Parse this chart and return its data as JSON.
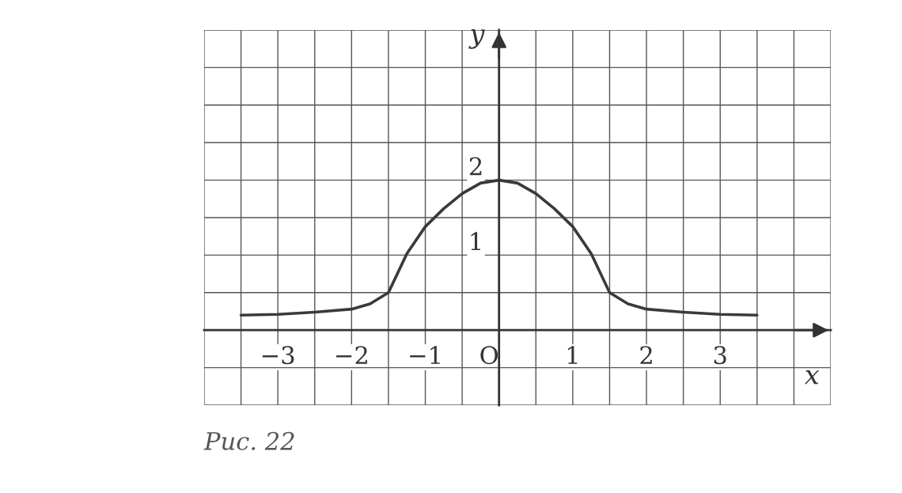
{
  "chart_data": {
    "type": "line",
    "xlabel": "x",
    "ylabel": "y",
    "annotations": [
      "Рис. 22"
    ],
    "x": [
      -3.5,
      -3,
      -2.5,
      -2,
      -1.75,
      -1.5,
      -1.25,
      -1,
      -0.75,
      -0.5,
      -0.25,
      0,
      0.25,
      0.5,
      0.75,
      1,
      1.25,
      1.5,
      1.75,
      2,
      2.5,
      3,
      3.5
    ],
    "series": [
      {
        "color": "#3a3a3a",
        "values": [
          0.2,
          0.21,
          0.24,
          0.28,
          0.35,
          0.5,
          1.02,
          1.38,
          1.62,
          1.82,
          1.96,
          2,
          1.96,
          1.82,
          1.62,
          1.38,
          1.02,
          0.5,
          0.35,
          0.28,
          0.24,
          0.21,
          0.2
        ]
      }
    ],
    "xlim": [
      -4,
      4.5
    ],
    "ylim": [
      -1,
      4
    ],
    "xticks": [
      {
        "value": -4,
        "label": null
      },
      {
        "value": -3.5,
        "label": null
      },
      {
        "value": -3,
        "label": "−3"
      },
      {
        "value": -2.5,
        "label": null
      },
      {
        "value": -2,
        "label": "−2"
      },
      {
        "value": -1.5,
        "label": null
      },
      {
        "value": -1,
        "label": "−1"
      },
      {
        "value": -0.5,
        "label": null
      },
      {
        "value": 0,
        "label": "O"
      },
      {
        "value": 0.5,
        "label": null
      },
      1,
      {
        "value": 1.5,
        "label": null
      },
      2,
      {
        "value": 2.5,
        "label": null
      },
      3,
      {
        "value": 3.5,
        "label": null
      },
      {
        "value": 4,
        "label": null
      },
      {
        "value": 4.5,
        "label": null
      }
    ],
    "yticks": [
      {
        "value": -1,
        "label": null
      },
      {
        "value": -0.5,
        "label": null
      },
      {
        "value": 0,
        "label": null
      },
      {
        "value": 0.5,
        "label": null
      },
      1,
      {
        "value": 1.5,
        "label": null
      },
      2,
      {
        "value": 2.5,
        "label": null
      },
      {
        "value": 3,
        "label": null
      },
      {
        "value": 3.5,
        "label": null
      },
      {
        "value": 4,
        "label": null
      }
    ],
    "grid": true,
    "marker": "none",
    "line_style": "solid"
  }
}
